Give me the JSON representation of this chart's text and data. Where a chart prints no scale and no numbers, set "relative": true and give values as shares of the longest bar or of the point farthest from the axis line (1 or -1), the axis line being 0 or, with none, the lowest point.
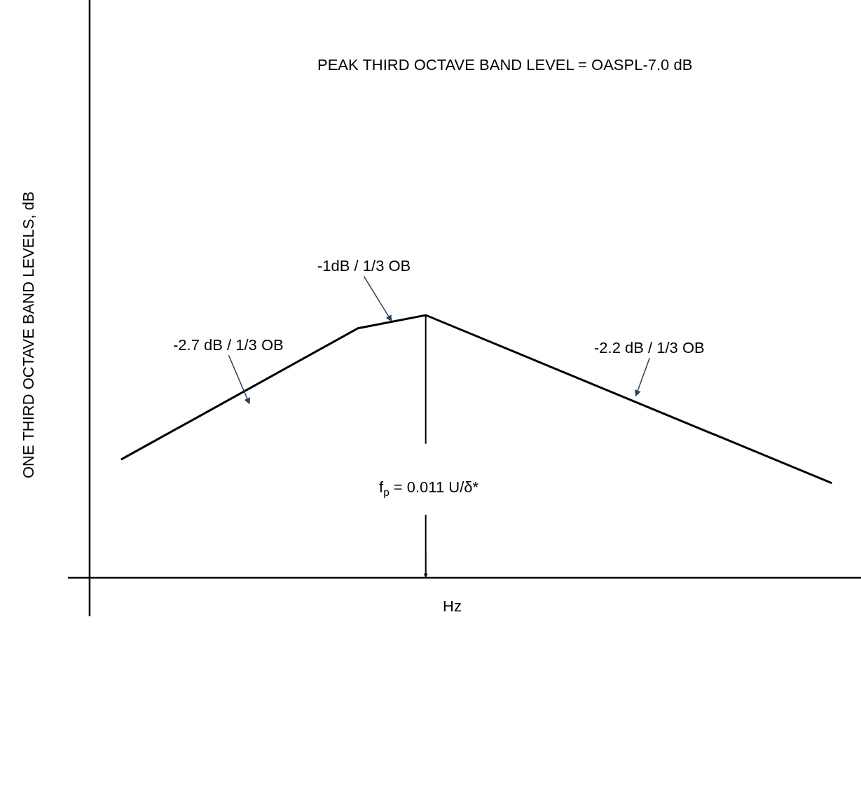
{
  "chart_data": {
    "type": "line",
    "relative": true,
    "xlabel": "Hz",
    "ylabel": "ONE THIRD OCTAVE BAND LEVELS, dB",
    "categories": [
      null,
      null,
      null,
      null,
      null,
      null,
      null,
      null,
      null,
      null,
      null,
      null,
      null,
      null,
      null,
      null,
      null,
      null,
      null,
      null,
      null,
      null
    ],
    "series": [
      {
        "color": "#000000",
        "values": [
          0.45,
          null,
          null,
          null,
          null,
          null,
          null,
          0.95,
          null,
          1.0,
          null,
          null,
          null,
          null,
          null,
          null,
          null,
          null,
          null,
          null,
          null,
          0.36
        ]
      }
    ],
    "annotations": [
      "PEAK THIRD OCTAVE BAND LEVEL = OASPL-7.0 dB",
      "f$_{p}$ = 0.011 U/δ*",
      "-1dB / 1/3 OB",
      "-2.7 dB / 1/3 OB",
      "-2.2 dB / 1/3 OB"
    ],
    "legend": false,
    "marker": "none",
    "line_style": "solid"
  }
}
